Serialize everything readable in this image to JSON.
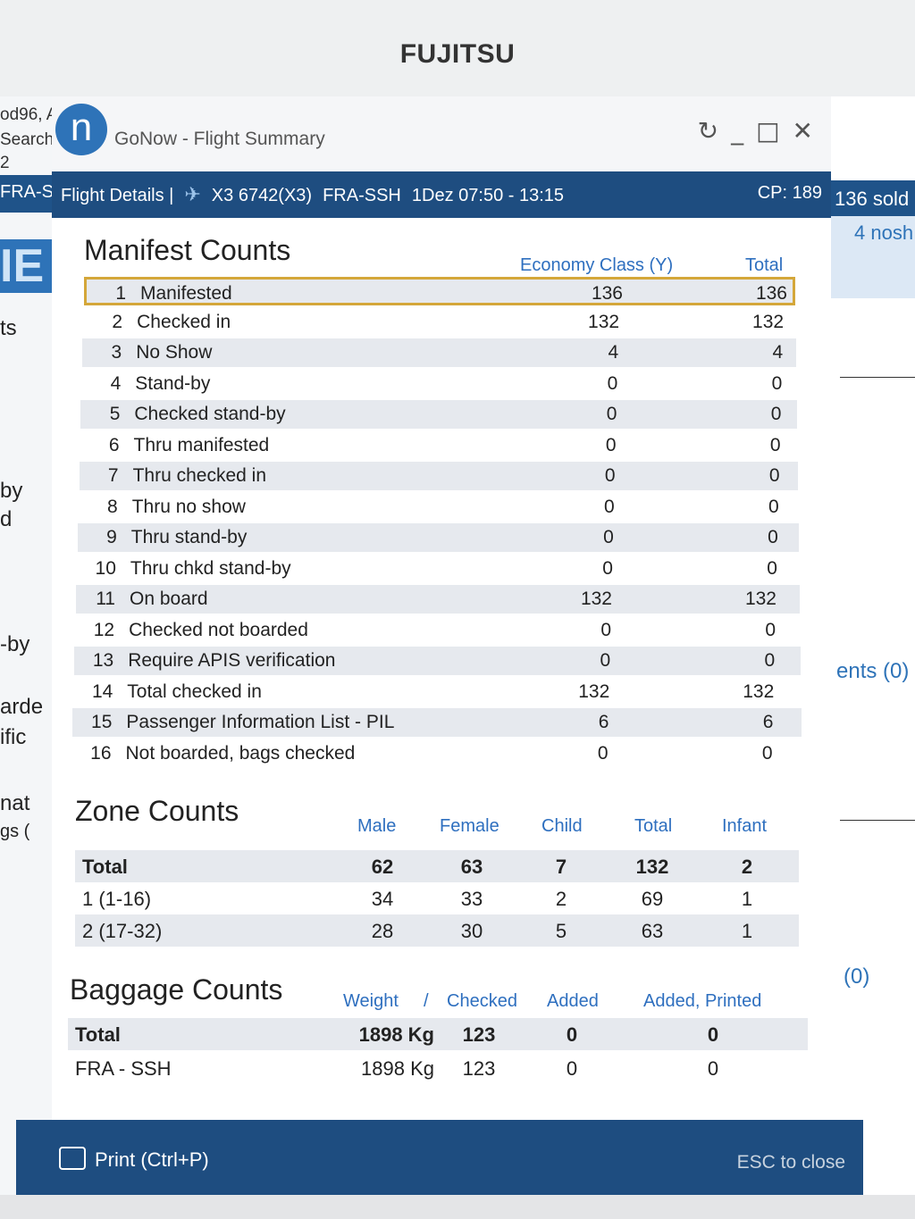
{
  "monitor": {
    "brand": "FUJITSU"
  },
  "background_app": {
    "left_fragments": [
      "od96, A",
      "Search",
      "2",
      "FRA-S",
      "IE",
      "ts",
      "by",
      "d",
      "-by",
      "arde",
      "ific",
      "nat",
      "gs ("
    ],
    "right_fragments": [
      "136 sold",
      "4 nosh",
      "ents (0)",
      "(0)"
    ]
  },
  "window": {
    "app_title": "GoNow - Flight Summary",
    "controls": [
      "refresh-icon",
      "minimize-icon",
      "maximize-icon",
      "close-icon"
    ]
  },
  "flight_bar": {
    "label": "Flight Details |",
    "airline_code": "X3 6742(X3)",
    "route": "FRA-SSH",
    "date_time": "1Dez 07:50 - 13:15",
    "cp": "CP: 189"
  },
  "manifest": {
    "title": "Manifest Counts",
    "columns": [
      "Economy Class (Y)",
      "Total"
    ],
    "rows": [
      {
        "num": "1",
        "label": "Manifested",
        "economy": "136",
        "total": "136"
      },
      {
        "num": "2",
        "label": "Checked in",
        "economy": "132",
        "total": "132"
      },
      {
        "num": "3",
        "label": "No Show",
        "economy": "4",
        "total": "4"
      },
      {
        "num": "4",
        "label": "Stand-by",
        "economy": "0",
        "total": "0"
      },
      {
        "num": "5",
        "label": "Checked stand-by",
        "economy": "0",
        "total": "0"
      },
      {
        "num": "6",
        "label": "Thru manifested",
        "economy": "0",
        "total": "0"
      },
      {
        "num": "7",
        "label": "Thru checked in",
        "economy": "0",
        "total": "0"
      },
      {
        "num": "8",
        "label": "Thru no show",
        "economy": "0",
        "total": "0"
      },
      {
        "num": "9",
        "label": "Thru stand-by",
        "economy": "0",
        "total": "0"
      },
      {
        "num": "10",
        "label": "Thru chkd stand-by",
        "economy": "0",
        "total": "0"
      },
      {
        "num": "11",
        "label": "On board",
        "economy": "132",
        "total": "132"
      },
      {
        "num": "12",
        "label": "Checked not boarded",
        "economy": "0",
        "total": "0"
      },
      {
        "num": "13",
        "label": "Require APIS verification",
        "economy": "0",
        "total": "0"
      },
      {
        "num": "14",
        "label": "Total checked in",
        "economy": "132",
        "total": "132"
      },
      {
        "num": "15",
        "label": "Passenger Information List - PIL",
        "economy": "6",
        "total": "6"
      },
      {
        "num": "16",
        "label": "Not boarded, bags checked",
        "economy": "0",
        "total": "0"
      }
    ]
  },
  "zones": {
    "title": "Zone Counts",
    "columns": [
      "Male",
      "Female",
      "Child",
      "Total",
      "Infant"
    ],
    "rows": [
      {
        "label": "Total",
        "values": [
          "62",
          "63",
          "7",
          "132",
          "2"
        ]
      },
      {
        "label": "1 (1-16)",
        "values": [
          "34",
          "33",
          "2",
          "69",
          "1"
        ]
      },
      {
        "label": "2 (17-32)",
        "values": [
          "28",
          "30",
          "5",
          "63",
          "1"
        ]
      }
    ]
  },
  "baggage": {
    "title": "Baggage Counts",
    "columns": [
      "Weight",
      "/",
      "Checked",
      "Added",
      "Added, Printed"
    ],
    "rows": [
      {
        "label": "Total",
        "weight": "1898 Kg",
        "checked": "123",
        "added": "0",
        "printed": "0"
      },
      {
        "label": "FRA - SSH",
        "weight": "1898 Kg",
        "checked": "123",
        "added": "0",
        "printed": "0"
      }
    ]
  },
  "footer": {
    "print_label": "Print (Ctrl+P)",
    "close_hint": "ESC to close"
  }
}
